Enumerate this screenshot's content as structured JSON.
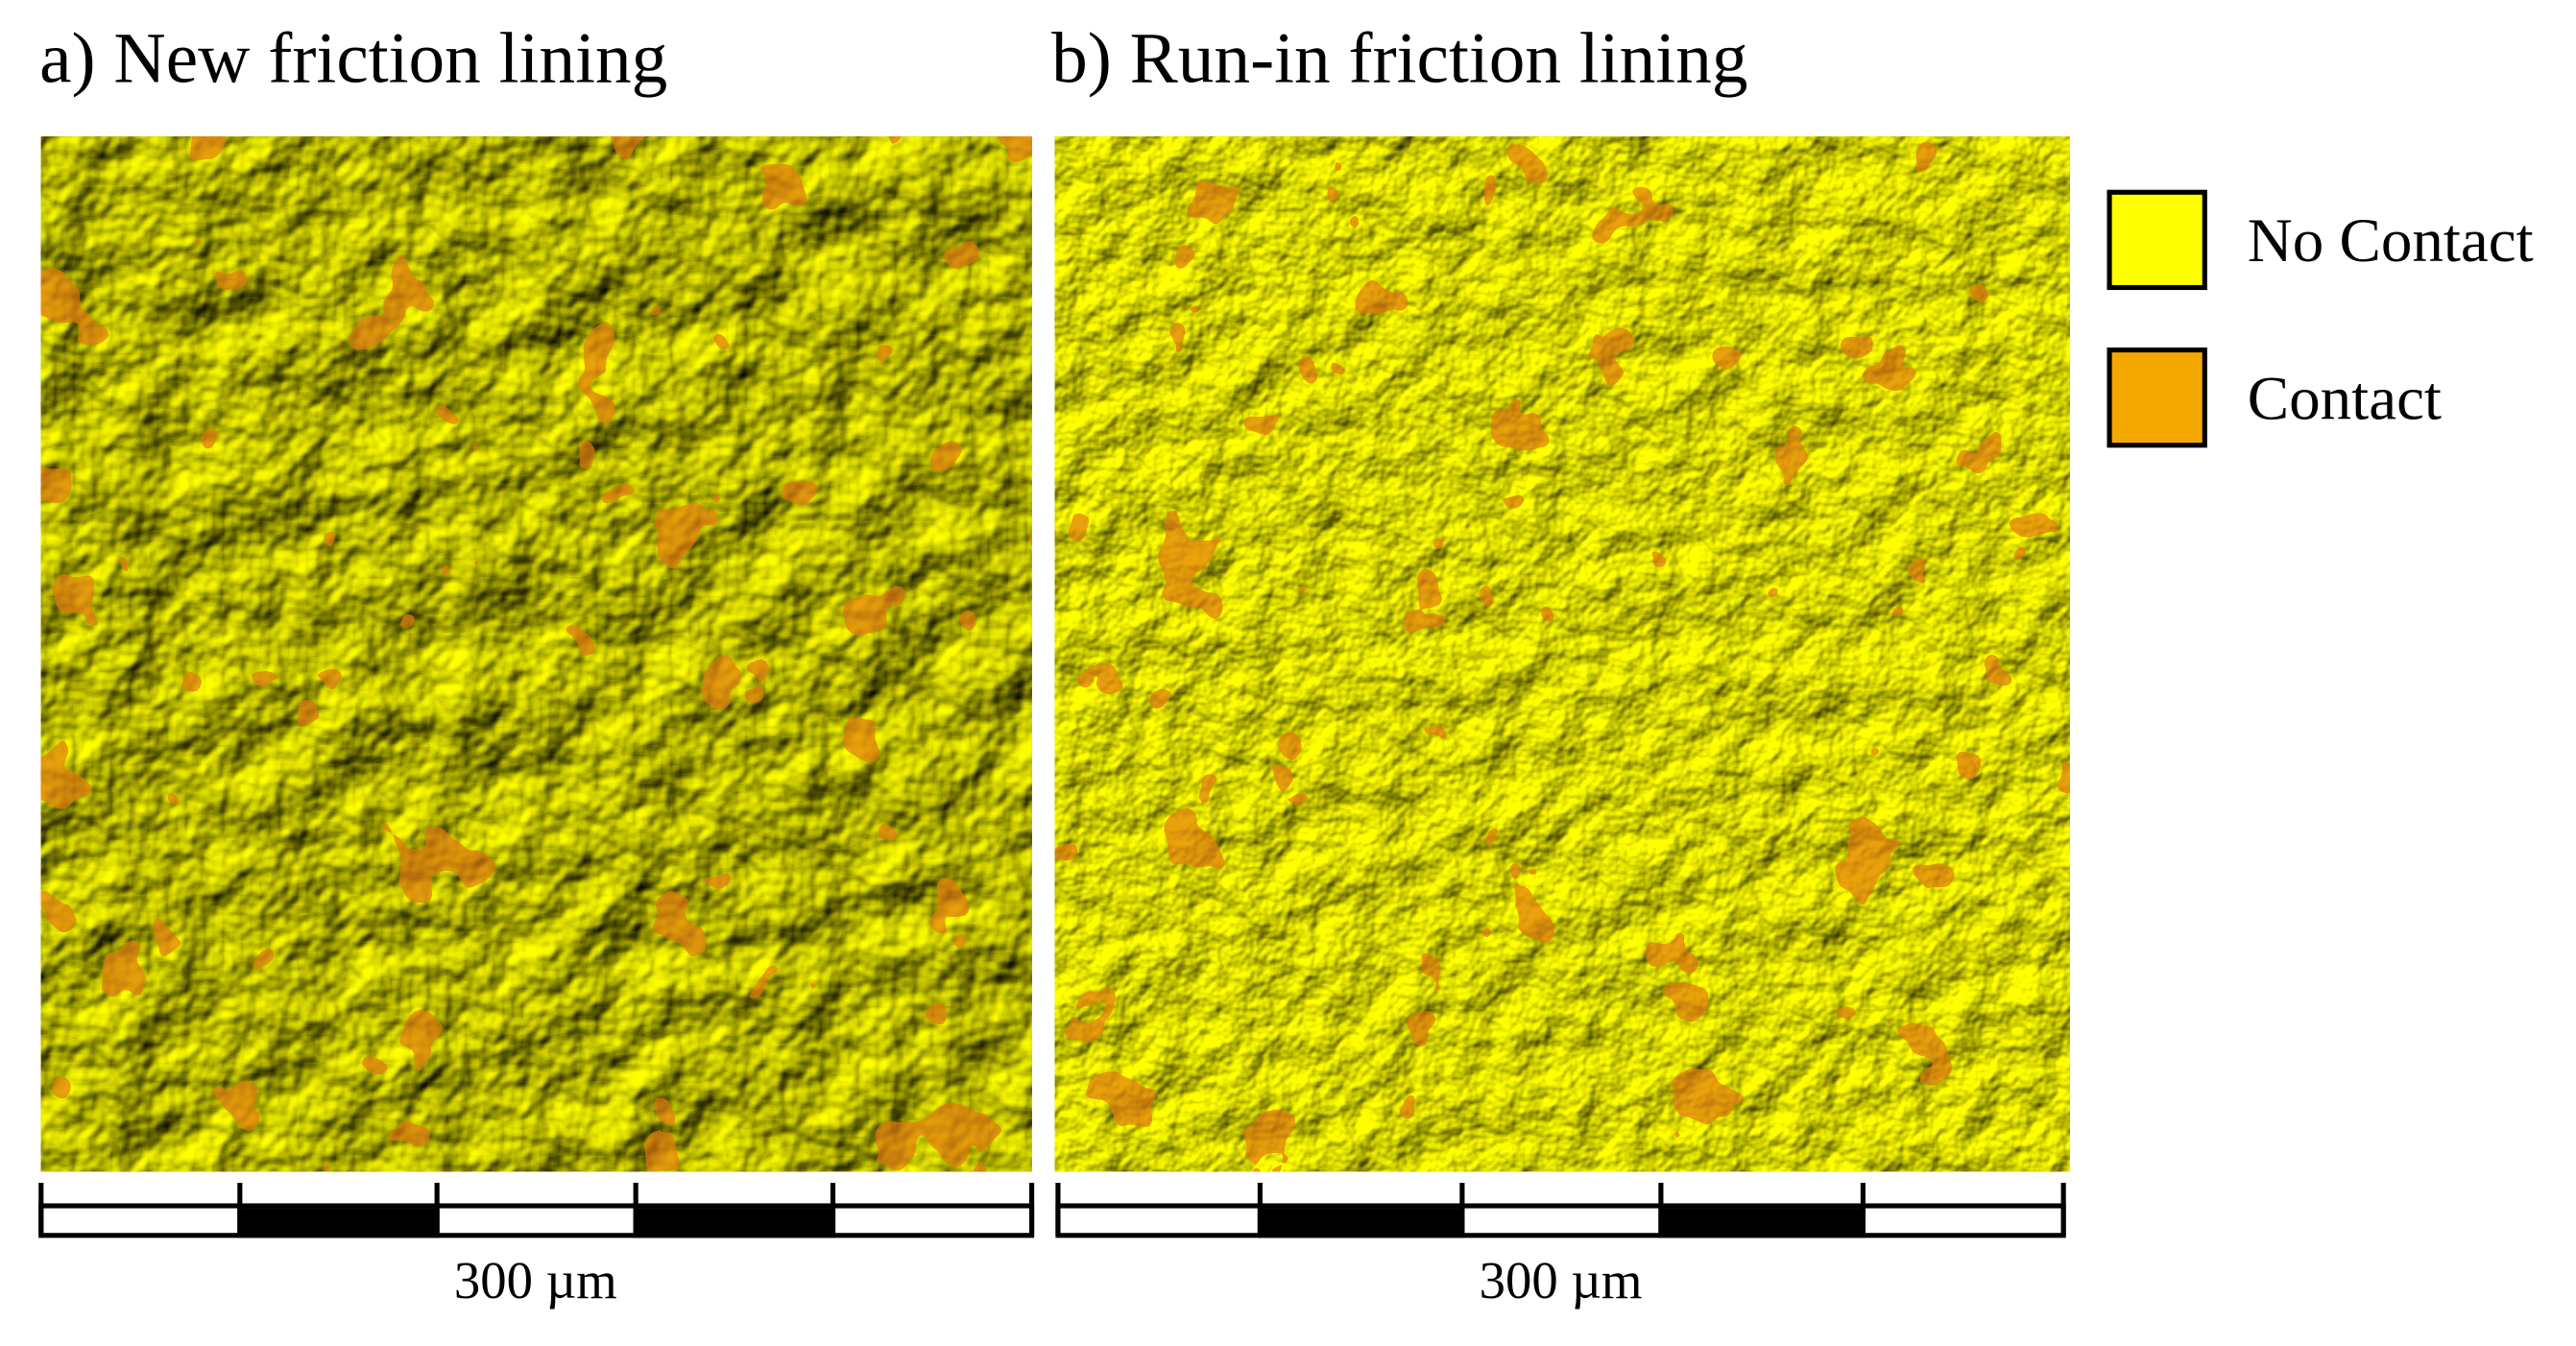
{
  "panels": [
    {
      "title": "a) New friction lining",
      "scale_label": "300 µm"
    },
    {
      "title": "b) Run-in friction lining",
      "scale_label": "300 µm"
    }
  ],
  "legend": [
    {
      "label": "No Contact",
      "color": "#ffff00"
    },
    {
      "label": "Contact",
      "color": "#f5a800"
    }
  ]
}
